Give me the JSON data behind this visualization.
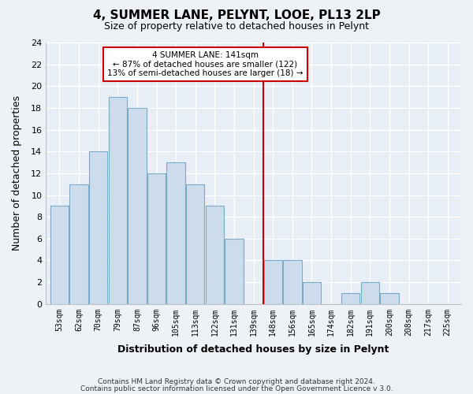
{
  "title": "4, SUMMER LANE, PELYNT, LOOE, PL13 2LP",
  "subtitle": "Size of property relative to detached houses in Pelynt",
  "xlabel": "Distribution of detached houses by size in Pelynt",
  "ylabel": "Number of detached properties",
  "bar_labels": [
    "53sqm",
    "62sqm",
    "70sqm",
    "79sqm",
    "87sqm",
    "96sqm",
    "105sqm",
    "113sqm",
    "122sqm",
    "131sqm",
    "139sqm",
    "148sqm",
    "156sqm",
    "165sqm",
    "174sqm",
    "182sqm",
    "191sqm",
    "200sqm",
    "208sqm",
    "217sqm",
    "225sqm"
  ],
  "bar_values": [
    9,
    11,
    14,
    19,
    18,
    12,
    13,
    11,
    9,
    6,
    0,
    4,
    4,
    2,
    0,
    1,
    2,
    1,
    0,
    0,
    0
  ],
  "bar_color": "#cddcec",
  "bar_edge_color": "#7aaac8",
  "vline_x_index": 10,
  "vline_color": "#cc0000",
  "annotation_text_line1": "4 SUMMER LANE: 141sqm",
  "annotation_text_line2": "← 87% of detached houses are smaller (122)",
  "annotation_text_line3": "13% of semi-detached houses are larger (18) →",
  "ylim": [
    0,
    24
  ],
  "yticks": [
    0,
    2,
    4,
    6,
    8,
    10,
    12,
    14,
    16,
    18,
    20,
    22,
    24
  ],
  "footer1": "Contains HM Land Registry data © Crown copyright and database right 2024.",
  "footer2": "Contains public sector information licensed under the Open Government Licence v 3.0.",
  "bg_color": "#eef2f7",
  "plot_bg_color": "#e8eef5",
  "grid_color": "#ffffff"
}
